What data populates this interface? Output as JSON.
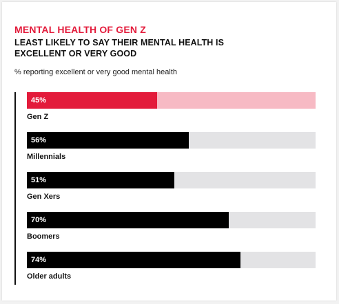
{
  "colors": {
    "accent": "#e31b3b",
    "accent_track": "#f7bac4",
    "bar": "#000000",
    "track": "#e3e3e5"
  },
  "header": {
    "title": "MENTAL HEALTH OF GEN Z",
    "subtitle": "LEAST LIKELY TO SAY THEIR MENTAL HEALTH IS EXCELLENT OR VERY GOOD",
    "axis_note": "% reporting excellent or very good mental health"
  },
  "chart_data": {
    "type": "bar",
    "orientation": "horizontal",
    "title": "MENTAL HEALTH OF GEN Z",
    "subtitle": "LEAST LIKELY TO SAY THEIR MENTAL HEALTH IS EXCELLENT OR VERY GOOD",
    "xlabel": "",
    "ylabel": "% reporting excellent or very good mental health",
    "xlim": [
      0,
      100
    ],
    "grid": false,
    "legend": "none",
    "categories": [
      "Gen Z",
      "Millennials",
      "Gen Xers",
      "Boomers",
      "Older adults"
    ],
    "values": [
      45,
      56,
      51,
      70,
      74
    ],
    "value_labels": [
      "45%",
      "56%",
      "51%",
      "70%",
      "74%"
    ],
    "highlight_index": 0
  }
}
